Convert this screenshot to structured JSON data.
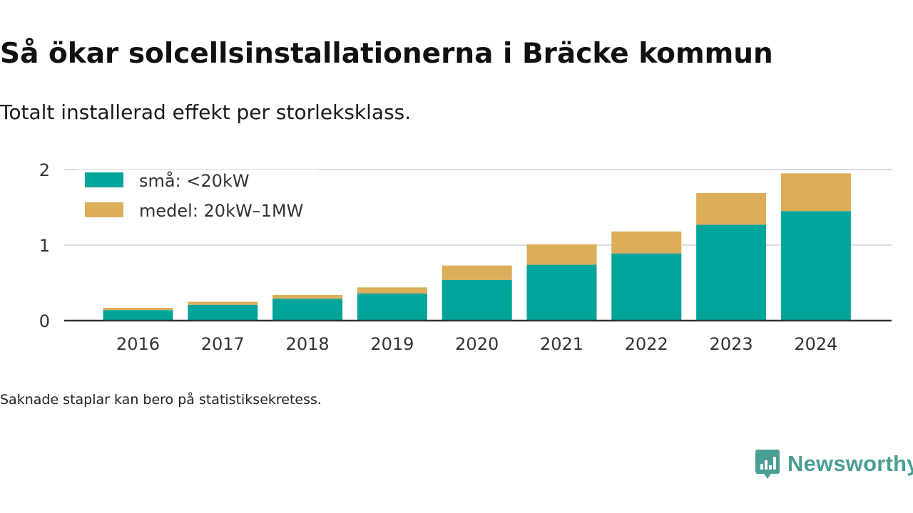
{
  "header": {
    "title": "Så ökar solcellsinstallationerna i Bräcke kommun",
    "subtitle": "Totalt installerad effekt per storleksklass."
  },
  "footer": {
    "note": "Saknade staplar kan bero på statistiksekretess.",
    "brand": "Newsworthy"
  },
  "chart_data": {
    "type": "bar",
    "stacked": true,
    "categories": [
      "2016",
      "2017",
      "2018",
      "2019",
      "2020",
      "2021",
      "2022",
      "2023",
      "2024"
    ],
    "series": [
      {
        "name": "små: <20kW",
        "color": "#00a49a",
        "values": [
          0.14,
          0.21,
          0.29,
          0.36,
          0.54,
          0.74,
          0.89,
          1.27,
          1.45
        ]
      },
      {
        "name": "medel: 20kW–1MW",
        "color": "#dcae59",
        "values": [
          0.03,
          0.04,
          0.05,
          0.08,
          0.19,
          0.27,
          0.29,
          0.42,
          0.5
        ]
      }
    ],
    "ylim": [
      0,
      2
    ],
    "yticks": [
      "0",
      "1",
      "2"
    ],
    "grid": true,
    "legend": "top-left",
    "axis_color": "#333333",
    "grid_color": "#dddddd"
  }
}
